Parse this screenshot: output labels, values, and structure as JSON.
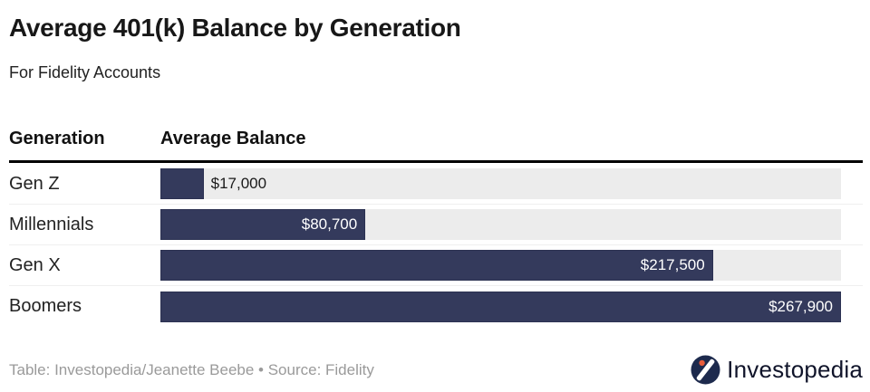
{
  "title": "Average 401(k) Balance by Generation",
  "subtitle": "For Fidelity Accounts",
  "table": {
    "columns": [
      "Generation",
      "Average Balance"
    ]
  },
  "chart_data": {
    "type": "bar",
    "orientation": "horizontal",
    "title": "Average 401(k) Balance by Generation",
    "subtitle": "For Fidelity Accounts",
    "categories": [
      "Gen Z",
      "Millennials",
      "Gen X",
      "Boomers"
    ],
    "values": [
      17000,
      80700,
      217500,
      267900
    ],
    "value_labels": [
      "$17,000",
      "$80,700",
      "$217,500",
      "$267,900"
    ],
    "xlabel": "Average Balance",
    "ylabel": "Generation",
    "xlim": [
      0,
      267900
    ],
    "grid": false,
    "legend": false
  },
  "footer": {
    "credit": "Table: Investopedia/Jeanette Beebe • Source: Fidelity",
    "logo_text": "Investopedia"
  },
  "colors": {
    "bar": "#343a5c",
    "bar_track": "#ececec",
    "value_label_inside": "#ffffff",
    "value_label_outside": "#1a1a1a",
    "header_rule": "#000000",
    "row_separator": "#efefef",
    "title_text": "#181818",
    "credit_text": "#9a9a9a",
    "logo_circle": "#1d2a4d",
    "logo_dot": "#e85c3a",
    "logo_text": "#10142a"
  }
}
